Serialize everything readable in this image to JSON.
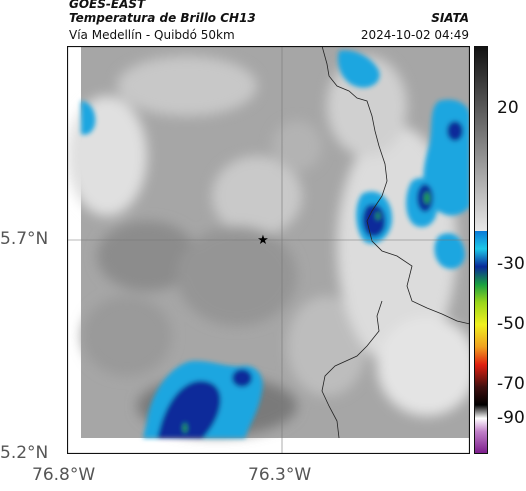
{
  "header": {
    "satellite": "GOES-EAST",
    "product": "Temperatura de Brillo CH13",
    "region": "Vía Medellín - Quibdó 50km",
    "agency": "SIATA",
    "datetime": "2024-10-02 04:49"
  },
  "axes": {
    "lat_ticks": [
      "5.7°N",
      "5.2°N"
    ],
    "lon_ticks": [
      "76.8°W",
      "76.3°W"
    ]
  },
  "colorbar": {
    "labels": [
      "20",
      "-30",
      "-50",
      "-70",
      "-90"
    ]
  },
  "marker": {
    "icon": "star-icon"
  },
  "colors": {
    "ocean": "#ffffff",
    "cold_cloud": "#0a2a9a",
    "cyan": "#1aa6e0",
    "border": "#222222"
  }
}
